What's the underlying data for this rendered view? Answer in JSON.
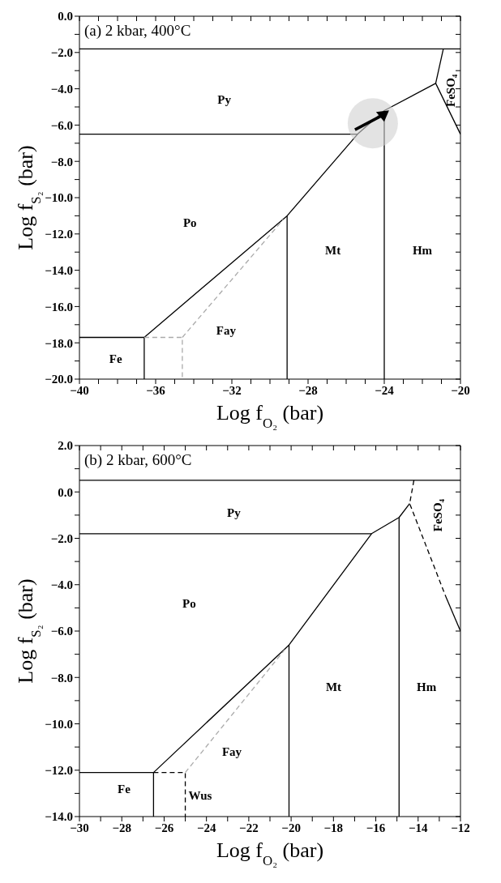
{
  "chart_data": [
    {
      "type": "line",
      "title": "(a) 2 kbar, 400°C",
      "xlabel": "Log f$_{O₂}$ (bar)",
      "ylabel": "Log f$_{S₂}$ (bar)",
      "xlim": [
        -40,
        -20
      ],
      "ylim": [
        -20,
        0
      ],
      "xticks": [
        {
          "value": -40,
          "label": "−40"
        },
        {
          "value": -39,
          "label": null
        },
        {
          "value": -38,
          "label": null
        },
        {
          "value": -37,
          "label": null
        },
        {
          "value": -36,
          "label": "−36"
        },
        {
          "value": -35,
          "label": null
        },
        {
          "value": -34,
          "label": null
        },
        {
          "value": -33,
          "label": null
        },
        {
          "value": -32,
          "label": "−32"
        },
        {
          "value": -31,
          "label": null
        },
        {
          "value": -30,
          "label": null
        },
        {
          "value": -29,
          "label": null
        },
        {
          "value": -28,
          "label": "−28"
        },
        {
          "value": -27,
          "label": null
        },
        {
          "value": -26,
          "label": null
        },
        {
          "value": -25,
          "label": null
        },
        {
          "value": -24,
          "label": "−24"
        },
        {
          "value": -23,
          "label": null
        },
        {
          "value": -22,
          "label": null
        },
        {
          "value": -21,
          "label": null
        },
        {
          "value": -20,
          "label": "−20"
        }
      ],
      "yticks": [
        {
          "value": 0,
          "label": "0.0"
        },
        {
          "value": -1,
          "label": null
        },
        {
          "value": -2,
          "label": "−2.0"
        },
        {
          "value": -3,
          "label": null
        },
        {
          "value": -4,
          "label": "−4.0"
        },
        {
          "value": -5,
          "label": null
        },
        {
          "value": -6,
          "label": "−6.0"
        },
        {
          "value": -7,
          "label": null
        },
        {
          "value": -8,
          "label": "−8.0"
        },
        {
          "value": -9,
          "label": null
        },
        {
          "value": -10,
          "label": "−10.0"
        },
        {
          "value": -11,
          "label": null
        },
        {
          "value": -12,
          "label": "−12.0"
        },
        {
          "value": -13,
          "label": null
        },
        {
          "value": -14,
          "label": "−14.0"
        },
        {
          "value": -15,
          "label": null
        },
        {
          "value": -16,
          "label": "−16.0"
        },
        {
          "value": -17,
          "label": null
        },
        {
          "value": -18,
          "label": "−18.0"
        },
        {
          "value": -19,
          "label": null
        },
        {
          "value": -20,
          "label": "−20.0"
        }
      ],
      "series": [
        {
          "color": "#000000",
          "line_style": "solid",
          "x": [
            -40,
            -20
          ],
          "values": [
            -1.8,
            -1.8
          ]
        },
        {
          "color": "#000000",
          "line_style": "solid",
          "x": [
            -40,
            -25.4
          ],
          "values": [
            -6.5,
            -6.5
          ]
        },
        {
          "color": "#000000",
          "line_style": "solid",
          "x": [
            -36.6,
            -29.1,
            -25.4,
            -24.0,
            -21.3
          ],
          "values": [
            -17.7,
            -11.0,
            -6.5,
            -5.2,
            -3.7
          ]
        },
        {
          "color": "#000000",
          "line_style": "solid",
          "x": [
            -20.9,
            -21.3,
            -20
          ],
          "values": [
            -1.8,
            -3.7,
            -6.5
          ]
        },
        {
          "color": "#000000",
          "line_style": "solid",
          "x": [
            -40,
            -36.6
          ],
          "values": [
            -17.7,
            -17.7
          ]
        },
        {
          "color": "#000000",
          "line_style": "solid",
          "x": [
            -36.6,
            -36.6
          ],
          "values": [
            -20,
            -17.7
          ]
        },
        {
          "color": "#000000",
          "line_style": "solid",
          "x": [
            -29.1,
            -29.1
          ],
          "values": [
            -20,
            -11.0
          ]
        },
        {
          "color": "#000000",
          "line_style": "solid",
          "x": [
            -24.0,
            -24.0
          ],
          "values": [
            -20,
            -5.2
          ]
        },
        {
          "color": "#aaaaaa",
          "line_style": "dashed",
          "x": [
            -36.6,
            -34.6,
            -34.6
          ],
          "values": [
            -17.7,
            -17.7,
            -20
          ]
        },
        {
          "color": "#aaaaaa",
          "line_style": "dashed",
          "x": [
            -34.6,
            -29.3
          ],
          "values": [
            -17.7,
            -11.2
          ]
        }
      ],
      "annotations": [
        "Py",
        "Po",
        "Mt",
        "Hm",
        "Fay",
        "Fe",
        "FeSO₄"
      ]
    },
    {
      "type": "line",
      "title": "(b) 2 kbar, 600°C",
      "xlabel": "Log f$_{O₂}$ (bar)",
      "ylabel": "Log f$_{S₂}$ (bar)",
      "xlim": [
        -30,
        -12
      ],
      "ylim": [
        -14,
        2
      ],
      "xticks": [
        {
          "value": -30,
          "label": "−30"
        },
        {
          "value": -29,
          "label": null
        },
        {
          "value": -28,
          "label": "−28"
        },
        {
          "value": -27,
          "label": null
        },
        {
          "value": -26,
          "label": "−26"
        },
        {
          "value": -25,
          "label": null
        },
        {
          "value": -24,
          "label": "−24"
        },
        {
          "value": -23,
          "label": null
        },
        {
          "value": -22,
          "label": "−22"
        },
        {
          "value": -21,
          "label": null
        },
        {
          "value": -20,
          "label": "−20"
        },
        {
          "value": -19,
          "label": null
        },
        {
          "value": -18,
          "label": "−18"
        },
        {
          "value": -17,
          "label": null
        },
        {
          "value": -16,
          "label": "−16"
        },
        {
          "value": -15,
          "label": null
        },
        {
          "value": -14,
          "label": "−14"
        },
        {
          "value": -13,
          "label": null
        },
        {
          "value": -12,
          "label": "−12"
        }
      ],
      "yticks": [
        {
          "value": 2,
          "label": "2.0"
        },
        {
          "value": 1,
          "label": null
        },
        {
          "value": 0,
          "label": "0.0"
        },
        {
          "value": -1,
          "label": null
        },
        {
          "value": -2,
          "label": "−2.0"
        },
        {
          "value": -3,
          "label": null
        },
        {
          "value": -4,
          "label": "−4.0"
        },
        {
          "value": -5,
          "label": null
        },
        {
          "value": -6,
          "label": "−6.0"
        },
        {
          "value": -7,
          "label": null
        },
        {
          "value": -8,
          "label": "−8.0"
        },
        {
          "value": -9,
          "label": null
        },
        {
          "value": -10,
          "label": "−10.0"
        },
        {
          "value": -11,
          "label": null
        },
        {
          "value": -12,
          "label": "−12.0"
        },
        {
          "value": -13,
          "label": null
        },
        {
          "value": -14,
          "label": "−14.0"
        }
      ],
      "series": [
        {
          "color": "#000000",
          "line_style": "solid",
          "x": [
            -30,
            -12
          ],
          "values": [
            0.5,
            0.5
          ]
        },
        {
          "color": "#000000",
          "line_style": "solid",
          "x": [
            -30,
            -16.2
          ],
          "values": [
            -1.8,
            -1.8
          ]
        },
        {
          "color": "#000000",
          "line_style": "solid",
          "x": [
            -26.5,
            -20.1,
            -16.2,
            -14.9,
            -14.4
          ],
          "values": [
            -12.1,
            -6.6,
            -1.8,
            -1.1,
            -0.5
          ]
        },
        {
          "color": "#000000",
          "line_style": "solid",
          "x": [
            -20.1,
            -20.1
          ],
          "values": [
            -14,
            -6.6
          ]
        },
        {
          "color": "#000000",
          "line_style": "solid",
          "x": [
            -14.9,
            -14.9
          ],
          "values": [
            -14,
            -1.1
          ]
        },
        {
          "color": "#000000",
          "line_style": "dashed",
          "x": [
            -14.2,
            -14.4,
            -12.7
          ],
          "values": [
            0.5,
            -0.5,
            -4.5
          ]
        },
        {
          "color": "#000000",
          "line_style": "solid",
          "x": [
            -12.7,
            -12
          ],
          "values": [
            -4.5,
            -6.0
          ]
        },
        {
          "color": "#000000",
          "line_style": "solid",
          "x": [
            -30,
            -26.5
          ],
          "values": [
            -12.1,
            -12.1
          ]
        },
        {
          "color": "#000000",
          "line_style": "solid",
          "x": [
            -26.5,
            -26.5
          ],
          "values": [
            -14,
            -12.1
          ]
        },
        {
          "color": "#000000",
          "line_style": "dashed",
          "x": [
            -26.5,
            -25.0,
            -25.0
          ],
          "values": [
            -12.1,
            -12.1,
            -14
          ]
        },
        {
          "color": "#aaaaaa",
          "line_style": "dashed",
          "x": [
            -25.0,
            -20.3
          ],
          "values": [
            -12.1,
            -6.8
          ]
        }
      ],
      "annotations": [
        "Py",
        "Po",
        "Mt",
        "Hm",
        "Fay",
        "Fe",
        "Wus",
        "FeSO₄"
      ]
    }
  ]
}
